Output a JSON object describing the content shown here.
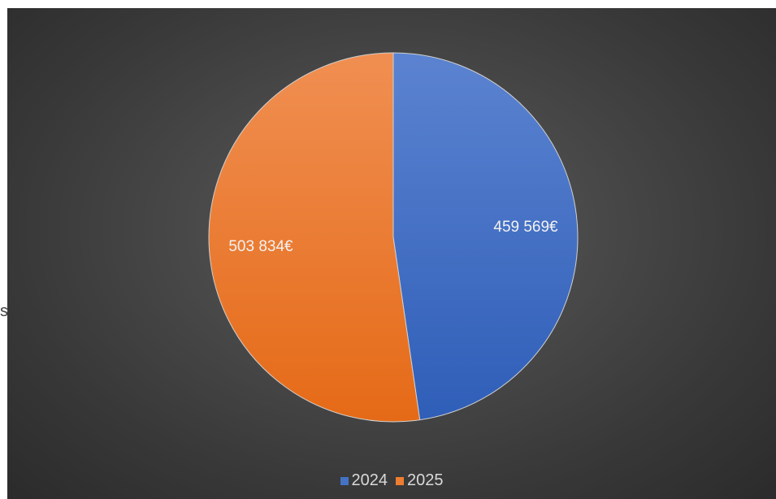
{
  "edge_text": "s",
  "chart_data": {
    "type": "pie",
    "categories": [
      "2024",
      "2025"
    ],
    "values": [
      459569,
      503834
    ],
    "data_labels": [
      "459 569€",
      "503 834€"
    ],
    "colors": [
      "#4472c4",
      "#ed7d31"
    ],
    "legend_position": "bottom",
    "background": "#404040"
  },
  "legend": {
    "items": [
      {
        "label": "2024",
        "color": "#4472c4"
      },
      {
        "label": "2025",
        "color": "#ed7d31"
      }
    ]
  }
}
